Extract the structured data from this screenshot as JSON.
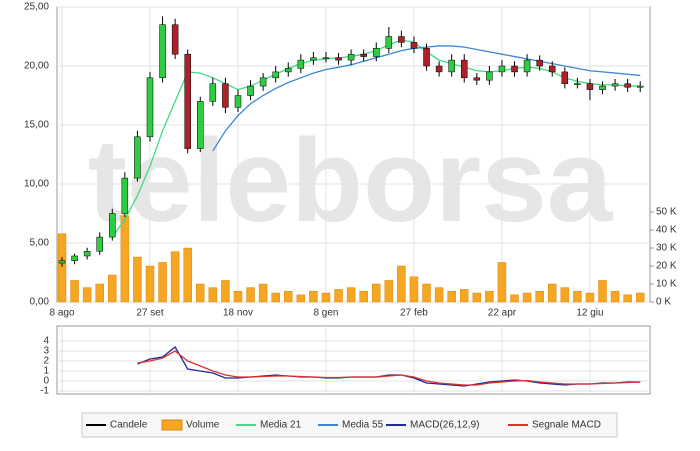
{
  "chart_data": [
    {
      "type": "candlestick",
      "watermark": "teleborsa",
      "categories": [
        "8 ago",
        null,
        null,
        null,
        null,
        null,
        null,
        "27 set",
        null,
        null,
        null,
        null,
        null,
        null,
        "18 nov",
        null,
        null,
        null,
        null,
        null,
        null,
        "8 gen",
        null,
        null,
        null,
        null,
        null,
        null,
        "27 feb",
        null,
        null,
        null,
        null,
        null,
        null,
        "22 apr",
        null,
        null,
        null,
        null,
        null,
        null,
        "12 giu",
        null,
        null,
        null,
        null
      ],
      "candles": {
        "name": "Candele",
        "color": "#000000",
        "up_color": "#2ecc40",
        "down_color": "#b0202a",
        "open": [
          3.3,
          3.5,
          3.9,
          4.3,
          5.5,
          7.5,
          10.5,
          14,
          19,
          23.5,
          21,
          13,
          17,
          18.5,
          16.5,
          17.5,
          18.3,
          19,
          19.5,
          19.8,
          20.5,
          20.7,
          20.7,
          20.5,
          21,
          20.8,
          21.5,
          22.5,
          22,
          21.5,
          20,
          19.5,
          20.5,
          19,
          18.8,
          19.5,
          20,
          19.5,
          20.5,
          20,
          19.5,
          18.5,
          18.5,
          18,
          18.3,
          18.5,
          18.2
        ],
        "high": [
          3.8,
          4.1,
          4.6,
          5.9,
          7.9,
          11,
          14.5,
          19.5,
          24.2,
          24,
          21.4,
          17.4,
          19,
          19,
          18,
          18.8,
          19.4,
          20,
          20.3,
          21,
          21.2,
          21.2,
          21.1,
          21.4,
          21.4,
          22,
          23.3,
          23,
          22.5,
          21.9,
          20.4,
          21,
          21,
          19.4,
          20,
          20.5,
          20.4,
          21,
          20.9,
          20.4,
          19.9,
          19,
          18.9,
          18.7,
          18.9,
          18.9,
          18.7
        ],
        "low": [
          3,
          3.2,
          3.6,
          4,
          5.2,
          7.2,
          10.2,
          13.6,
          18.6,
          20.6,
          12.6,
          12.7,
          16.6,
          16,
          16.1,
          17.1,
          17.9,
          18.6,
          19.1,
          19.4,
          20.1,
          20.3,
          20.1,
          20.1,
          20.4,
          20.4,
          21.1,
          21.6,
          21.1,
          19.6,
          19.1,
          19.1,
          18.6,
          18.4,
          18.4,
          19.1,
          19.1,
          19.1,
          19.6,
          19.1,
          18.1,
          18.1,
          17.1,
          17.6,
          17.9,
          17.8,
          17.8
        ],
        "close": [
          3.5,
          3.9,
          4.3,
          5.5,
          7.5,
          10.5,
          14,
          19,
          23.5,
          21,
          13,
          17,
          18.5,
          16.5,
          17.5,
          18.3,
          19,
          19.5,
          19.8,
          20.5,
          20.7,
          20.7,
          20.5,
          21,
          20.8,
          21.5,
          22.5,
          22,
          21.5,
          20,
          19.5,
          20.5,
          19,
          18.8,
          19.5,
          20,
          19.5,
          20.5,
          20,
          19.5,
          18.5,
          18.5,
          18,
          18.3,
          18.5,
          18.2,
          18.3
        ]
      },
      "series": [
        {
          "name": "Volume",
          "type": "bar",
          "axis": "y2",
          "color": "#f5a623",
          "values": [
            38,
            12,
            8,
            10,
            15,
            48,
            25,
            20,
            22,
            28,
            30,
            10,
            8,
            12,
            6,
            8,
            10,
            5,
            6,
            4,
            6,
            5,
            7,
            8,
            6,
            10,
            12,
            20,
            14,
            10,
            8,
            6,
            7,
            5,
            6,
            22,
            4,
            5,
            6,
            10,
            8,
            6,
            5,
            12,
            6,
            4,
            5
          ]
        },
        {
          "name": "Media 21",
          "type": "line",
          "color": "#3ddc84",
          "values": [
            null,
            null,
            null,
            null,
            5.5,
            7,
            9,
            11.5,
            14.5,
            17,
            19.5,
            19.4,
            19,
            18.5,
            18,
            18.3,
            18.8,
            19.3,
            19.8,
            20.2,
            20.5,
            20.6,
            20.7,
            20.8,
            21,
            21.3,
            21.8,
            22.2,
            22,
            21.2,
            20.5,
            20.2,
            19.9,
            19.6,
            19.5,
            19.6,
            19.8,
            19.9,
            19.8,
            19.5,
            19,
            18.7,
            18.5,
            18.4,
            18.4,
            18.3,
            18.3
          ]
        },
        {
          "name": "Media 55",
          "type": "line",
          "color": "#3a87d6",
          "values": [
            null,
            null,
            null,
            null,
            null,
            null,
            null,
            null,
            null,
            null,
            null,
            null,
            12.8,
            14.5,
            15.8,
            16.8,
            17.5,
            18.1,
            18.6,
            19,
            19.4,
            19.7,
            19.9,
            20.1,
            20.4,
            20.7,
            21,
            21.3,
            21.5,
            21.6,
            21.7,
            21.7,
            21.6,
            21.4,
            21.2,
            21,
            20.8,
            20.6,
            20.4,
            20.2,
            20,
            19.8,
            19.6,
            19.5,
            19.4,
            19.3,
            19.2
          ]
        }
      ],
      "ylim": [
        0,
        25
      ],
      "yticks": [
        {
          "value": 0,
          "label": "0,00"
        },
        {
          "value": 5,
          "label": "5,00"
        },
        {
          "value": 10,
          "label": "10,00"
        },
        {
          "value": 15,
          "label": "15,00"
        },
        {
          "value": 20,
          "label": "20,00"
        },
        {
          "value": 25,
          "label": "25,00"
        }
      ],
      "y2lim": [
        0,
        164
      ],
      "y2ticks": [
        {
          "value": 0,
          "label": "0 K"
        },
        {
          "value": 10,
          "label": "10 K"
        },
        {
          "value": 20,
          "label": "20 K"
        },
        {
          "value": 30,
          "label": "30 K"
        },
        {
          "value": 40,
          "label": "40 K"
        },
        {
          "value": 50,
          "label": "50 K"
        }
      ],
      "grid": true
    },
    {
      "type": "line",
      "series": [
        {
          "name": "MACD(26,12,9)",
          "color": "#1f2a9c",
          "values": [
            null,
            null,
            null,
            null,
            null,
            null,
            1.7,
            2.2,
            2.4,
            3.4,
            1.2,
            1,
            0.8,
            0.3,
            0.3,
            0.4,
            0.5,
            0.6,
            0.5,
            0.4,
            0.4,
            0.3,
            0.3,
            0.4,
            0.4,
            0.4,
            0.6,
            0.6,
            0.3,
            -0.2,
            -0.3,
            -0.4,
            -0.5,
            -0.3,
            -0.1,
            0,
            0.1,
            0,
            -0.2,
            -0.3,
            -0.4,
            -0.3,
            -0.3,
            -0.2,
            -0.2,
            -0.1,
            -0.1
          ]
        },
        {
          "name": "Segnale MACD",
          "color": "#e0302a",
          "values": [
            null,
            null,
            null,
            null,
            null,
            null,
            1.8,
            2,
            2.3,
            3,
            2,
            1.5,
            1,
            0.6,
            0.4,
            0.4,
            0.45,
            0.5,
            0.5,
            0.45,
            0.4,
            0.35,
            0.35,
            0.4,
            0.4,
            0.4,
            0.5,
            0.6,
            0.4,
            0,
            -0.2,
            -0.3,
            -0.4,
            -0.4,
            -0.2,
            -0.1,
            0,
            0.05,
            -0.1,
            -0.2,
            -0.3,
            -0.3,
            -0.3,
            -0.25,
            -0.2,
            -0.15,
            -0.1
          ]
        }
      ],
      "ylim": [
        -1.3,
        5.5
      ],
      "yticks": [
        -1,
        0,
        1,
        2,
        3,
        4
      ],
      "grid": true
    }
  ]
}
